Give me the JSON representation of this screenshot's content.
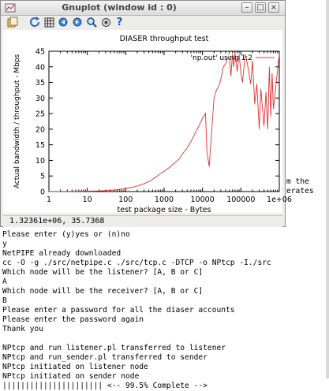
{
  "window": {
    "title": "Gnuplot (window id : 0)",
    "minimize_glyph": "–",
    "restore_glyph": "□",
    "close_glyph": "×",
    "status": "1.32361e+06, 35.7368"
  },
  "toolbar": {
    "buttons": [
      "copy-to-clipboard-icon",
      "replot-icon",
      "grid-icon",
      "zoom-back-icon",
      "zoom-forward-icon",
      "autoscale-icon",
      "settings-icon",
      "help-icon"
    ],
    "help_glyph": "?"
  },
  "chart_data": {
    "type": "line",
    "title": "DIASER throughput test",
    "xlabel": "test package size - Bytes",
    "ylabel": "Actual bandwidth / throughput - Mbps",
    "x_scale": "log",
    "xlim": [
      1,
      1000000
    ],
    "ylim": [
      0,
      45
    ],
    "x_tick_labels": [
      "1",
      "10",
      "100",
      "1000",
      "10000",
      "100000",
      "1e+06"
    ],
    "y_tick_labels": [
      "0",
      "5",
      "10",
      "15",
      "20",
      "25",
      "30",
      "35",
      "40",
      "45"
    ],
    "legend": {
      "position": "top-right"
    },
    "series": [
      {
        "name": "'np.out' using 1:2",
        "color": "#e03030",
        "x": [
          1,
          3,
          5,
          10,
          20,
          30,
          50,
          80,
          100,
          150,
          200,
          300,
          400,
          500,
          700,
          1000,
          1300,
          2000,
          2500,
          3000,
          4000,
          5000,
          6000,
          8000,
          10000,
          12000,
          13000,
          15000,
          16000,
          20000,
          23000,
          27000,
          30000,
          35000,
          40000,
          45000,
          50000,
          55000,
          60000,
          65000,
          70000,
          80000,
          90000,
          100000,
          110000,
          130000,
          150000,
          180000,
          200000,
          230000,
          260000,
          300000,
          330000,
          400000,
          450000,
          500000,
          550000,
          600000,
          650000,
          700000,
          800000,
          900000,
          1000000
        ],
        "y": [
          0.02,
          0.05,
          0.08,
          0.12,
          0.2,
          0.3,
          0.5,
          0.8,
          1.0,
          1.4,
          1.8,
          2.5,
          3.2,
          3.9,
          5.2,
          6.5,
          7.5,
          9.5,
          10.5,
          12.0,
          14.0,
          16.0,
          18.0,
          21.0,
          23.5,
          25.0,
          13.0,
          8.0,
          13.5,
          30.0,
          32.5,
          34.0,
          36.0,
          40.0,
          41.0,
          43.0,
          42.5,
          37.0,
          44.0,
          40.0,
          44.5,
          38.5,
          44.0,
          38.0,
          35.0,
          44.0,
          40.5,
          34.5,
          42.0,
          28.0,
          34.5,
          20.0,
          33.0,
          21.0,
          32.0,
          20.0,
          40.0,
          24.0,
          38.0,
          26.5,
          33.0,
          39.0,
          44.0
        ]
      }
    ]
  },
  "terminal": {
    "peek_lines": [
      "m the",
      "erates"
    ],
    "lines": [
      "Please enter (y)yes or (n)no",
      "y",
      "NetPIPE already downloaded",
      "cc -O -g ./src/netpipe.c ./src/tcp.c -DTCP -o NPtcp -I./src",
      "Which node will be the listener? [A, B or C]",
      "A",
      "Which node will be the receiver? [A, B or C]",
      "B",
      "Please enter a password for all the diaser accounts",
      "Please enter the password again",
      "Thank you",
      "",
      "NPtcp and run listener.pl transferred to listener",
      "NPtcp and run_sender.pl transferred to sender",
      "NPtcp initiated on listener node",
      "NPtcp initiated on sender node",
      "|||||||||||||||||||||| <-- 99.5% Complete -->"
    ]
  }
}
